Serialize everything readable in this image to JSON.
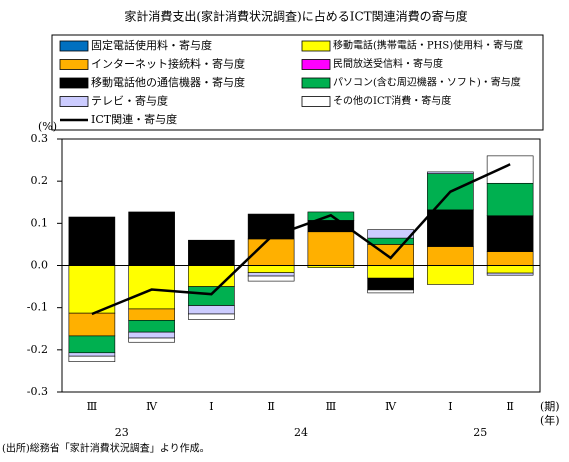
{
  "chart_data": {
    "type": "stacked-bar-line",
    "title": "家計消費支出(家計消費状況調査)に占めるICT関連消費の寄与度",
    "y_unit": "(%)",
    "x_unit": "(期)",
    "group_unit": "(年)",
    "source": "(出所)総務省「家計消費状況調査」より作成。",
    "categories": [
      "Ⅲ",
      "Ⅳ",
      "Ⅰ",
      "Ⅱ",
      "Ⅲ",
      "Ⅳ",
      "Ⅰ",
      "Ⅱ"
    ],
    "year_groups": [
      {
        "label": "23",
        "span": 2
      },
      {
        "label": "24",
        "span": 4
      },
      {
        "label": "25",
        "span": 2
      }
    ],
    "ylim": [
      -0.3,
      0.3
    ],
    "yticks": [
      -0.3,
      -0.2,
      -0.1,
      {
        "value": 0,
        "label": "0.0"
      },
      0.1,
      0.2,
      0.3
    ],
    "series": [
      {
        "name": "固定電話使用料・寄与度",
        "type": "bar",
        "color": "#0070c0",
        "values": [
          0,
          0,
          0,
          0,
          0,
          0,
          0,
          0
        ]
      },
      {
        "name": "移動電話(携帯電話・PHS)使用料・寄与度",
        "type": "bar",
        "color": "#ffff00",
        "values": [
          -0.113,
          -0.103,
          -0.05,
          -0.017,
          -0.005,
          -0.03,
          -0.045,
          -0.018
        ]
      },
      {
        "name": "インターネット接続料・寄与度",
        "type": "bar",
        "color": "#ffb000",
        "values": [
          -0.054,
          -0.027,
          0,
          0.063,
          0.08,
          0.05,
          0.045,
          0.033
        ]
      },
      {
        "name": "民間放送受信料・寄与度",
        "type": "bar",
        "color": "#ff00ff",
        "values": [
          0,
          0,
          0,
          0,
          0,
          0,
          0,
          0
        ]
      },
      {
        "name": "移動電話他の通信機器・寄与度",
        "type": "bar",
        "color": "#000000",
        "values": [
          0.115,
          0.127,
          0.06,
          0.059,
          0.027,
          -0.028,
          0.087,
          0.085
        ]
      },
      {
        "name": "パソコン(含む周辺機器・ソフト)・寄与度",
        "type": "bar",
        "color": "#00b050",
        "values": [
          -0.04,
          -0.028,
          -0.045,
          0,
          0.02,
          0.015,
          0.086,
          0.077
        ]
      },
      {
        "name": "テレビ・寄与度",
        "type": "bar",
        "color": "#ccccff",
        "values": [
          -0.008,
          -0.014,
          -0.02,
          -0.008,
          0,
          0.02,
          0.004,
          -0.005
        ]
      },
      {
        "name": "その他のICT消費・寄与度",
        "type": "bar",
        "color": "#ffffff",
        "values": [
          -0.013,
          -0.01,
          -0.013,
          -0.012,
          0,
          -0.007,
          0,
          0.065
        ]
      },
      {
        "name": "ICT関連・寄与度",
        "type": "line",
        "color": "#000000",
        "values": [
          -0.115,
          -0.057,
          -0.068,
          0.068,
          0.119,
          0.018,
          0.175,
          0.24
        ]
      }
    ]
  }
}
